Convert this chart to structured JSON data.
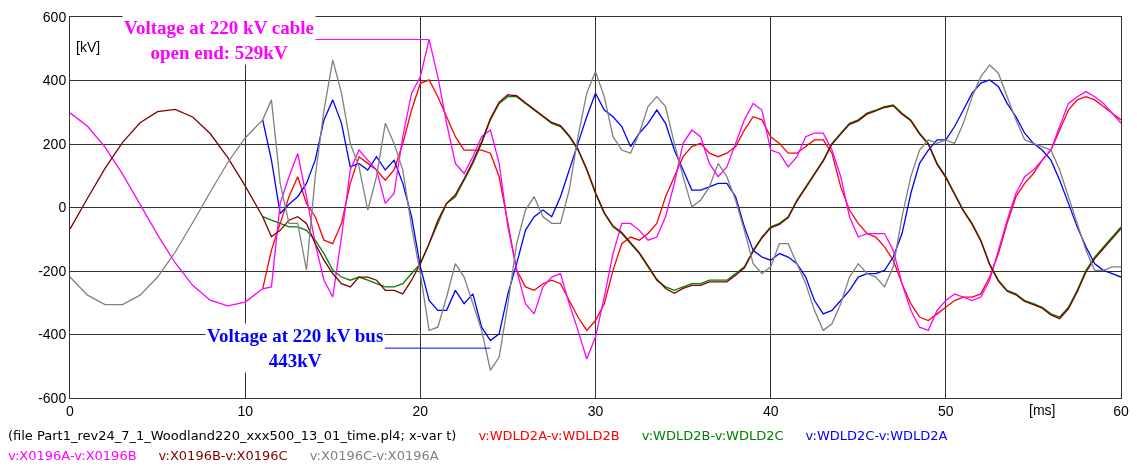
{
  "chart_data": {
    "type": "line",
    "xlabel": "[ms]",
    "ylabel": "[kV]",
    "x": [
      0,
      1,
      2,
      3,
      4,
      5,
      6,
      7,
      8,
      9,
      10,
      11,
      11.5,
      12,
      12.5,
      13,
      13.5,
      14,
      14.5,
      15,
      15.5,
      16,
      16.5,
      17,
      17.5,
      18,
      18.5,
      19,
      19.5,
      20,
      20.5,
      21,
      21.5,
      22,
      22.5,
      23,
      23.5,
      24,
      24.5,
      25,
      25.5,
      26,
      26.5,
      27,
      27.5,
      28,
      28.5,
      29,
      29.5,
      30,
      30.5,
      31,
      31.5,
      32,
      32.5,
      33,
      33.5,
      34,
      34.5,
      35,
      35.5,
      36,
      36.5,
      37,
      37.5,
      38,
      38.5,
      39,
      39.5,
      40,
      40.5,
      41,
      41.5,
      42,
      42.5,
      43,
      43.5,
      44,
      44.5,
      45,
      45.5,
      46,
      46.5,
      47,
      47.5,
      48,
      48.5,
      49,
      49.5,
      50,
      50.5,
      51,
      51.5,
      52,
      52.5,
      53,
      53.5,
      54,
      54.5,
      55,
      55.5,
      56,
      56.5,
      57,
      57.5,
      58,
      58.5,
      59,
      59.5,
      60
    ],
    "series": [
      {
        "name": "v:WDLD2A-v:WDLD2B",
        "color": "#ff0000",
        "values": [
          null,
          null,
          null,
          null,
          null,
          null,
          null,
          null,
          null,
          null,
          null,
          -256,
          -134,
          -50,
          34,
          97,
          13,
          -29,
          -103,
          -114,
          -50,
          76,
          160,
          139,
          118,
          86,
          118,
          202,
          307,
          391,
          402,
          349,
          286,
          223,
          181,
          181,
          181,
          171,
          97,
          -50,
          -197,
          -250,
          -261,
          -240,
          -229,
          -240,
          -293,
          -345,
          -387,
          -356,
          -303,
          -198,
          -114,
          -93,
          -103,
          -82,
          -50,
          34,
          97,
          160,
          192,
          202,
          171,
          160,
          171,
          192,
          244,
          286,
          276,
          223,
          202,
          171,
          171,
          192,
          213,
          213,
          171,
          65,
          -8,
          -50,
          -82,
          -93,
          -124,
          -166,
          -240,
          -303,
          -345,
          -356,
          -335,
          -314,
          -293,
          -282,
          -282,
          -272,
          -219,
          -145,
          -50,
          34,
          76,
          107,
          149,
          181,
          244,
          307,
          339,
          349,
          339,
          318,
          297,
          276
        ]
      },
      {
        "name": "v:WDLD2B-v:WDLD2C",
        "color": "#008000",
        "values": [
          null,
          null,
          null,
          null,
          null,
          null,
          null,
          null,
          null,
          null,
          null,
          -29,
          -40,
          -50,
          -61,
          -61,
          -72,
          -103,
          -145,
          -197,
          -219,
          -229,
          -219,
          -229,
          -240,
          -250,
          -250,
          -240,
          -208,
          -177,
          -114,
          -50,
          13,
          34,
          86,
          139,
          202,
          276,
          328,
          349,
          349,
          328,
          307,
          286,
          265,
          255,
          223,
          181,
          118,
          44,
          -19,
          -61,
          -82,
          -114,
          -145,
          -187,
          -229,
          -250,
          -261,
          -250,
          -240,
          -240,
          -229,
          -229,
          -229,
          -208,
          -187,
          -135,
          -93,
          -61,
          -50,
          -29,
          23,
          65,
          107,
          149,
          202,
          234,
          265,
          276,
          297,
          307,
          318,
          323,
          297,
          276,
          234,
          202,
          139,
          97,
          44,
          -8,
          -50,
          -103,
          -177,
          -229,
          -261,
          -272,
          -293,
          -303,
          -314,
          -335,
          -345,
          -314,
          -261,
          -198,
          -156,
          -124,
          -93,
          -61
        ]
      },
      {
        "name": "v:WDLD2C-v:WDLD2A",
        "color": "#0000ff",
        "values": [
          null,
          null,
          null,
          null,
          null,
          null,
          null,
          null,
          null,
          null,
          null,
          276,
          149,
          -19,
          10,
          34,
          76,
          149,
          276,
          339,
          265,
          128,
          139,
          118,
          160,
          118,
          149,
          76,
          -29,
          -186,
          -293,
          -324,
          -324,
          -261,
          -303,
          -272,
          -377,
          -419,
          -398,
          -272,
          -177,
          -72,
          -29,
          -8,
          -29,
          34,
          118,
          202,
          286,
          360,
          307,
          286,
          255,
          192,
          234,
          265,
          307,
          265,
          181,
          118,
          55,
          55,
          65,
          76,
          76,
          34,
          -61,
          -135,
          -156,
          -166,
          -145,
          -156,
          -177,
          -219,
          -293,
          -335,
          -324,
          -293,
          -261,
          -219,
          -208,
          -208,
          -198,
          -156,
          -82,
          44,
          139,
          181,
          213,
          213,
          255,
          307,
          360,
          392,
          402,
          381,
          328,
          286,
          234,
          202,
          181,
          149,
          86,
          13,
          -61,
          -124,
          -177,
          -198,
          -208,
          -219
        ]
      },
      {
        "name": "v:X0196A-v:X0196B",
        "color": "#ff00ff",
        "values": [
          298,
          256,
          190,
          105,
          10,
          -86,
          -174,
          -245,
          -292,
          -310,
          -298,
          -256,
          -250,
          13,
          97,
          170,
          34,
          -114,
          -229,
          -282,
          -93,
          118,
          181,
          149,
          118,
          13,
          44,
          223,
          360,
          412,
          529,
          412,
          265,
          139,
          107,
          160,
          223,
          244,
          139,
          -61,
          -197,
          -303,
          -335,
          -250,
          -219,
          -208,
          -303,
          -387,
          -477,
          -408,
          -282,
          -145,
          -50,
          -50,
          -72,
          -103,
          -93,
          -29,
          76,
          202,
          244,
          223,
          139,
          97,
          128,
          202,
          276,
          328,
          307,
          181,
          171,
          128,
          160,
          223,
          234,
          234,
          181,
          97,
          -29,
          -93,
          -82,
          -82,
          -82,
          -135,
          -240,
          -324,
          -377,
          -387,
          -324,
          -293,
          -272,
          -282,
          -293,
          -282,
          -229,
          -135,
          -40,
          44,
          97,
          118,
          149,
          181,
          255,
          328,
          349,
          365,
          349,
          328,
          297,
          265
        ]
      },
      {
        "name": "v:X0196B-v:X0196C",
        "color": "#800000",
        "values": [
          -68,
          29,
          123,
          205,
          267,
          302,
          309,
          285,
          233,
          158,
          68,
          -29,
          -92,
          -72,
          -40,
          -29,
          -50,
          -114,
          -166,
          -208,
          -240,
          -250,
          -219,
          -219,
          -229,
          -261,
          -261,
          -272,
          -229,
          -177,
          -114,
          -40,
          13,
          40,
          90,
          145,
          207,
          280,
          332,
          355,
          352,
          330,
          309,
          288,
          268,
          258,
          226,
          184,
          121,
          47,
          -16,
          -58,
          -79,
          -111,
          -142,
          -184,
          -226,
          -255,
          -270,
          -255,
          -245,
          -245,
          -234,
          -234,
          -234,
          -213,
          -190,
          -138,
          -96,
          -64,
          -53,
          -32,
          20,
          62,
          104,
          146,
          199,
          231,
          262,
          273,
          294,
          304,
          315,
          320,
          294,
          273,
          231,
          199,
          136,
          94,
          41,
          -11,
          -53,
          -106,
          -180,
          -232,
          -264,
          -275,
          -296,
          -306,
          -317,
          -338,
          -350,
          -319,
          -266,
          -203,
          -161,
          -129,
          -98,
          -66
        ]
      },
      {
        "name": "v:X0196C-v:X0196A",
        "color": "#808080",
        "values": [
          -219,
          -276,
          -306,
          -306,
          -276,
          -219,
          -141,
          -48,
          48,
          141,
          219,
          276,
          339,
          76,
          -50,
          -50,
          -197,
          97,
          307,
          465,
          360,
          202,
          128,
          -8,
          97,
          265,
          202,
          118,
          -61,
          -208,
          -387,
          -377,
          -282,
          -177,
          -219,
          -303,
          -387,
          -513,
          -471,
          -303,
          -114,
          -8,
          34,
          -29,
          -50,
          -50,
          55,
          223,
          360,
          428,
          349,
          223,
          181,
          171,
          234,
          318,
          349,
          318,
          202,
          97,
          2,
          23,
          65,
          139,
          97,
          23,
          -72,
          -177,
          -208,
          -187,
          -114,
          -114,
          -177,
          -240,
          -324,
          -387,
          -366,
          -303,
          -219,
          -177,
          -208,
          -219,
          -250,
          -187,
          -29,
          97,
          181,
          213,
          202,
          213,
          202,
          265,
          349,
          412,
          449,
          423,
          349,
          276,
          213,
          202,
          192,
          181,
          118,
          34,
          -50,
          -135,
          -198,
          -198,
          -187,
          -187
        ]
      }
    ],
    "xlim": [
      0,
      60
    ],
    "xticks": [
      0,
      10,
      20,
      30,
      40,
      50,
      60
    ],
    "ylim": [
      -600,
      600
    ],
    "yticks": [
      -600,
      -400,
      -200,
      0,
      200,
      400,
      600
    ],
    "grid": true,
    "legend": "bottom",
    "marker": "none",
    "line_style": "solid",
    "annotations": [
      {
        "text": "Voltage at 220 kV cable\nopen end: 529kV",
        "x": 20.5,
        "y": 529
      },
      {
        "text": "Voltage at 220 kV bus\n443kV",
        "x": 24,
        "y": -443
      },
      "(file Part1_rev24_7_1_Woodland220_xxx500_13_01_time.pl4; x-var t)"
    ]
  }
}
